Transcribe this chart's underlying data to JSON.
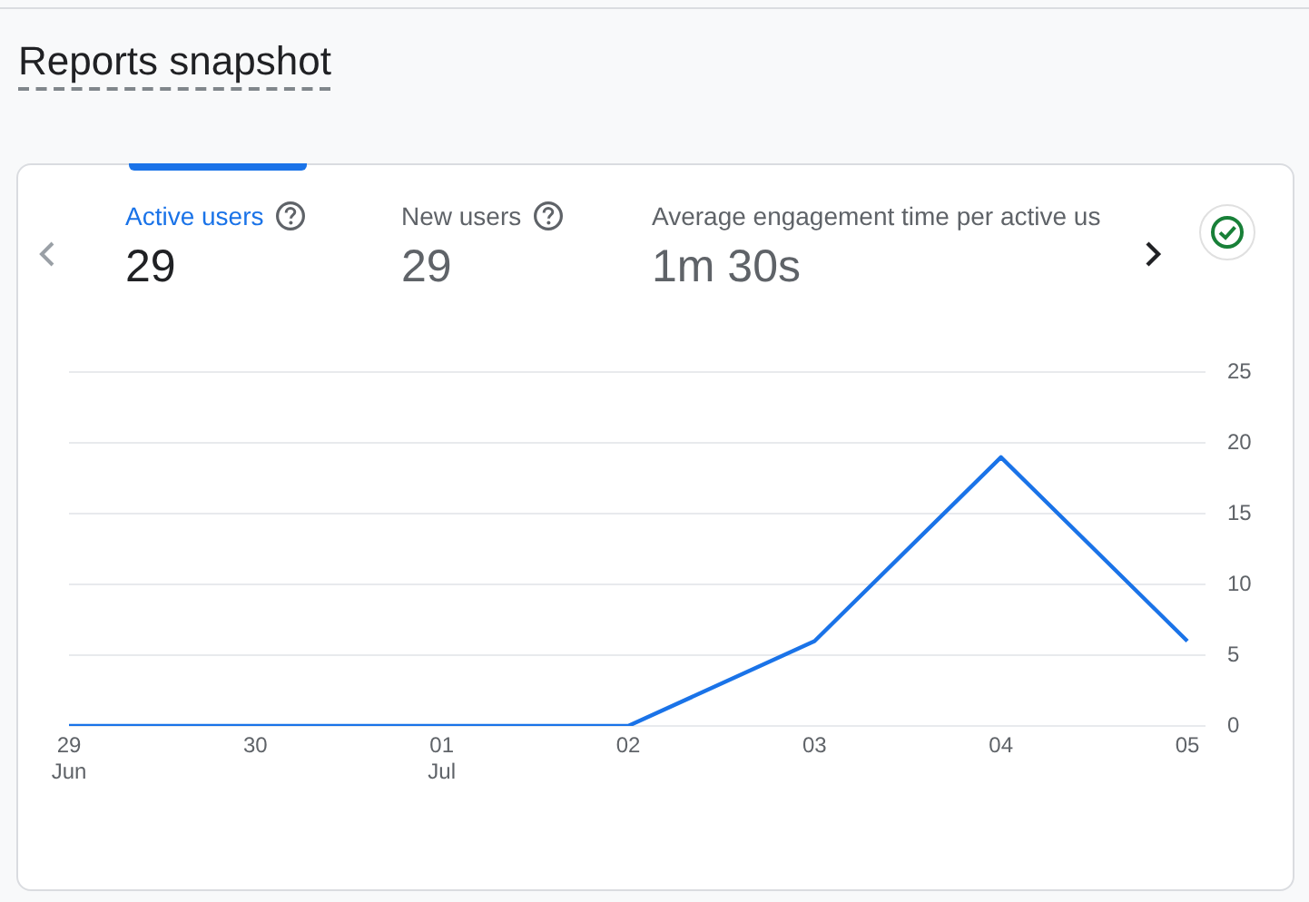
{
  "chart_data": {
    "type": "line",
    "title": "Reports snapshot",
    "annotations": [
      "Active users",
      "29",
      "New users",
      "29",
      "Average engagement time per active us",
      "1m 30s"
    ],
    "categories": [
      "29 Jun",
      "30",
      "01 Jul",
      "02",
      "03",
      "04",
      "05"
    ],
    "series": [
      {
        "color": "#1a73e8",
        "values": [
          0,
          0,
          0,
          0,
          6,
          19,
          6
        ]
      }
    ],
    "ylim": [
      0,
      25
    ],
    "yticks": [
      0,
      5,
      10,
      15,
      20,
      25
    ],
    "grid": "y",
    "legend": false,
    "marker": "none",
    "line_style": "solid"
  }
}
